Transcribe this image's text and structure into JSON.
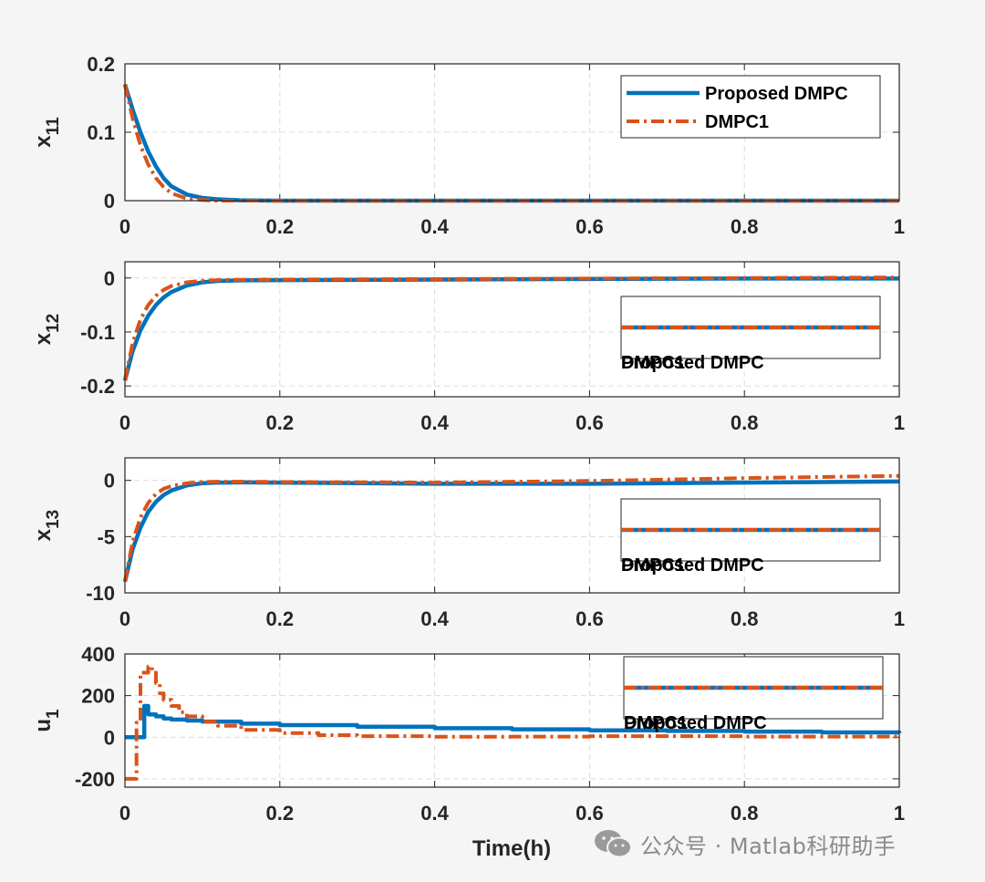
{
  "chart_data": [
    {
      "type": "line",
      "ylabel": "x",
      "ylabel_sub": "11",
      "xlim": [
        0,
        1
      ],
      "ylim": [
        0,
        0.2
      ],
      "xticks": [
        "0",
        "0.2",
        "0.4",
        "0.6",
        "0.8",
        "1"
      ],
      "yticks": [
        "0",
        "0.1",
        "0.2"
      ],
      "grid": true,
      "legend_location": "top-right",
      "legend": [
        "Proposed DMPC",
        "DMPC1"
      ],
      "series": [
        {
          "name": "Proposed DMPC",
          "x": [
            0,
            0.01,
            0.02,
            0.03,
            0.04,
            0.05,
            0.06,
            0.08,
            0.1,
            0.12,
            0.15,
            0.2,
            1.0
          ],
          "y": [
            0.17,
            0.133,
            0.1,
            0.072,
            0.05,
            0.033,
            0.021,
            0.009,
            0.004,
            0.002,
            0.0005,
            0,
            0
          ]
        },
        {
          "name": "DMPC1",
          "x": [
            0,
            0.01,
            0.02,
            0.03,
            0.04,
            0.05,
            0.06,
            0.08,
            0.1,
            0.12,
            0.2,
            1.0
          ],
          "y": [
            0.17,
            0.12,
            0.081,
            0.053,
            0.033,
            0.02,
            0.011,
            0.003,
            0.001,
            0,
            0,
            0
          ]
        }
      ]
    },
    {
      "type": "line",
      "ylabel": "x",
      "ylabel_sub": "12",
      "xlim": [
        0,
        1
      ],
      "ylim": [
        -0.22,
        0.03
      ],
      "xticks": [
        "0",
        "0.2",
        "0.4",
        "0.6",
        "0.8",
        "1"
      ],
      "yticks": [
        "-0.2",
        "-0.1",
        "0"
      ],
      "grid": true,
      "legend_location": "right",
      "legend": [
        "Proposed DMPC",
        "DMPC1"
      ],
      "series": [
        {
          "name": "Proposed DMPC",
          "x": [
            0,
            0.01,
            0.02,
            0.03,
            0.04,
            0.05,
            0.06,
            0.08,
            0.1,
            0.12,
            0.15,
            0.2,
            0.4,
            0.6,
            0.8,
            1.0
          ],
          "y": [
            -0.19,
            -0.135,
            -0.097,
            -0.07,
            -0.05,
            -0.036,
            -0.026,
            -0.014,
            -0.008,
            -0.0055,
            -0.0045,
            -0.004,
            -0.003,
            -0.002,
            -0.001,
            -0.001
          ]
        },
        {
          "name": "DMPC1",
          "x": [
            0,
            0.01,
            0.02,
            0.03,
            0.04,
            0.05,
            0.06,
            0.08,
            0.1,
            0.12,
            0.15,
            0.2,
            0.4,
            0.6,
            0.8,
            1.0
          ],
          "y": [
            -0.19,
            -0.12,
            -0.077,
            -0.05,
            -0.033,
            -0.022,
            -0.015,
            -0.008,
            -0.005,
            -0.004,
            -0.0035,
            -0.003,
            -0.002,
            -0.001,
            0,
            0.001
          ]
        }
      ]
    },
    {
      "type": "line",
      "ylabel": "x",
      "ylabel_sub": "13",
      "xlim": [
        0,
        1
      ],
      "ylim": [
        -10,
        2
      ],
      "xticks": [
        "0",
        "0.2",
        "0.4",
        "0.6",
        "0.8",
        "1"
      ],
      "yticks": [
        "-10",
        "-5",
        "0"
      ],
      "grid": true,
      "legend_location": "right",
      "legend": [
        "Proposed DMPC",
        "DMPC1"
      ],
      "series": [
        {
          "name": "Proposed DMPC",
          "x": [
            0,
            0.01,
            0.02,
            0.03,
            0.04,
            0.05,
            0.06,
            0.08,
            0.1,
            0.12,
            0.15,
            0.2,
            0.4,
            0.6,
            0.8,
            1.0
          ],
          "y": [
            -9,
            -6.1,
            -4.2,
            -2.8,
            -1.9,
            -1.3,
            -0.9,
            -0.45,
            -0.25,
            -0.2,
            -0.18,
            -0.2,
            -0.3,
            -0.3,
            -0.2,
            -0.1
          ]
        },
        {
          "name": "DMPC1",
          "x": [
            0,
            0.01,
            0.02,
            0.03,
            0.04,
            0.05,
            0.06,
            0.08,
            0.1,
            0.12,
            0.15,
            0.2,
            0.4,
            0.6,
            0.8,
            1.0
          ],
          "y": [
            -9,
            -5.4,
            -3.3,
            -2.0,
            -1.2,
            -0.75,
            -0.5,
            -0.25,
            -0.15,
            -0.12,
            -0.12,
            -0.15,
            -0.2,
            -0.05,
            0.2,
            0.4
          ]
        }
      ]
    },
    {
      "type": "line",
      "ylabel": "u",
      "ylabel_sub": "1",
      "xlim": [
        0,
        1
      ],
      "ylim": [
        -240,
        400
      ],
      "xticks": [
        "0",
        "0.2",
        "0.4",
        "0.6",
        "0.8",
        "1"
      ],
      "yticks": [
        "-200",
        "0",
        "200",
        "400"
      ],
      "xlabel": "Time(h)",
      "grid": true,
      "legend_location": "top-right",
      "legend": [
        "Proposed DMPC",
        "DMPC1"
      ],
      "series": [
        {
          "name": "Proposed DMPC",
          "x": [
            0,
            0.02,
            0.025,
            0.03,
            0.04,
            0.05,
            0.06,
            0.08,
            0.1,
            0.15,
            0.2,
            0.3,
            0.4,
            0.5,
            0.6,
            0.7,
            0.8,
            0.9,
            1.0
          ],
          "y": [
            0,
            0,
            150,
            110,
            100,
            90,
            85,
            80,
            75,
            65,
            58,
            50,
            43,
            38,
            33,
            30,
            27,
            23,
            20
          ]
        },
        {
          "name": "DMPC1",
          "x": [
            0,
            0.01,
            0.015,
            0.02,
            0.03,
            0.035,
            0.04,
            0.045,
            0.05,
            0.06,
            0.07,
            0.08,
            0.1,
            0.12,
            0.15,
            0.2,
            0.25,
            0.3,
            0.4,
            0.5,
            0.6,
            0.8,
            1.0
          ],
          "y": [
            -200,
            -200,
            70,
            310,
            340,
            310,
            260,
            210,
            180,
            150,
            120,
            100,
            75,
            55,
            35,
            20,
            10,
            5,
            2,
            3,
            5,
            3,
            2
          ]
        }
      ]
    }
  ],
  "series_colors": [
    "#0072bd",
    "#d95319"
  ],
  "watermark": {
    "icon": "wechat-icon",
    "text": "公众号 · Matlab科研助手"
  }
}
